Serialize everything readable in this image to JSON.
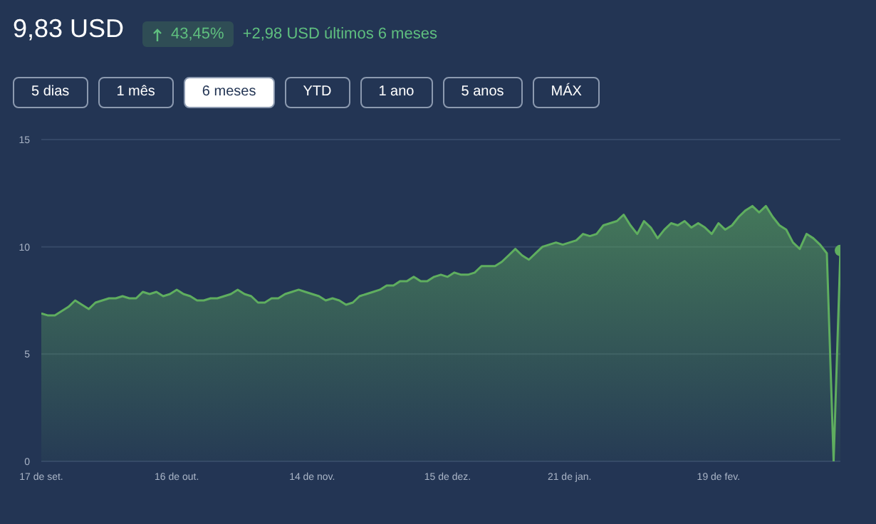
{
  "chart_data": {
    "type": "area",
    "title": "9,83 USD",
    "subtitle": "+2,98 USD últimos 6 meses",
    "annotations": [
      "43,45%",
      "5 dias",
      "1 mês",
      "6 meses",
      "YTD",
      "1 ano",
      "5 anos",
      "MÁX"
    ],
    "categories": [
      "17 de set.",
      null,
      null,
      null,
      null,
      null,
      null,
      null,
      null,
      null,
      null,
      null,
      null,
      null,
      null,
      null,
      null,
      null,
      null,
      null,
      "16 de out.",
      null,
      null,
      null,
      null,
      null,
      null,
      null,
      null,
      null,
      null,
      null,
      null,
      null,
      null,
      null,
      null,
      null,
      null,
      null,
      "14 de nov.",
      null,
      null,
      null,
      null,
      null,
      null,
      null,
      null,
      null,
      null,
      null,
      null,
      null,
      null,
      null,
      null,
      null,
      null,
      null,
      "15 de dez.",
      null,
      null,
      null,
      null,
      null,
      null,
      null,
      null,
      null,
      null,
      null,
      null,
      null,
      null,
      null,
      null,
      null,
      "21 de jan.",
      null,
      null,
      null,
      null,
      null,
      null,
      null,
      null,
      null,
      null,
      null,
      null,
      null,
      null,
      null,
      null,
      null,
      null,
      null,
      null,
      null,
      "19 de fev.",
      null,
      null,
      null,
      null,
      null,
      null,
      null,
      null,
      null,
      null,
      null,
      null,
      null,
      null,
      null,
      null,
      null,
      null
    ],
    "series": [
      {
        "color": "#5fae5f",
        "values": [
          6.9,
          6.8,
          6.8,
          7.0,
          7.2,
          7.5,
          7.3,
          7.1,
          7.4,
          7.5,
          7.6,
          7.6,
          7.7,
          7.6,
          7.6,
          7.9,
          7.8,
          7.9,
          7.7,
          7.8,
          8.0,
          7.8,
          7.7,
          7.5,
          7.5,
          7.6,
          7.6,
          7.7,
          7.8,
          8.0,
          7.8,
          7.7,
          7.4,
          7.4,
          7.6,
          7.6,
          7.8,
          7.9,
          8.0,
          7.9,
          7.8,
          7.7,
          7.5,
          7.6,
          7.5,
          7.3,
          7.4,
          7.7,
          7.8,
          7.9,
          8.0,
          8.2,
          8.2,
          8.4,
          8.4,
          8.6,
          8.4,
          8.4,
          8.6,
          8.7,
          8.6,
          8.8,
          8.7,
          8.7,
          8.8,
          9.1,
          9.1,
          9.1,
          9.3,
          9.6,
          9.9,
          9.6,
          9.4,
          9.7,
          10.0,
          10.1,
          10.2,
          10.1,
          10.2,
          10.3,
          10.6,
          10.5,
          10.6,
          11.0,
          11.1,
          11.2,
          11.5,
          11.0,
          10.6,
          11.2,
          10.9,
          10.4,
          10.8,
          11.1,
          11.0,
          11.2,
          10.9,
          11.1,
          10.9,
          10.6,
          11.1,
          10.8,
          11.0,
          11.4,
          11.7,
          11.9,
          11.6,
          11.9,
          11.4,
          11.0,
          10.8,
          10.2,
          9.9,
          10.6,
          10.4,
          10.1,
          9.7,
          0,
          9.83
        ]
      }
    ],
    "ylim": [
      0,
      15
    ],
    "yticks": [
      0,
      5,
      10,
      15
    ],
    "grid": "y",
    "marker": "none"
  }
}
